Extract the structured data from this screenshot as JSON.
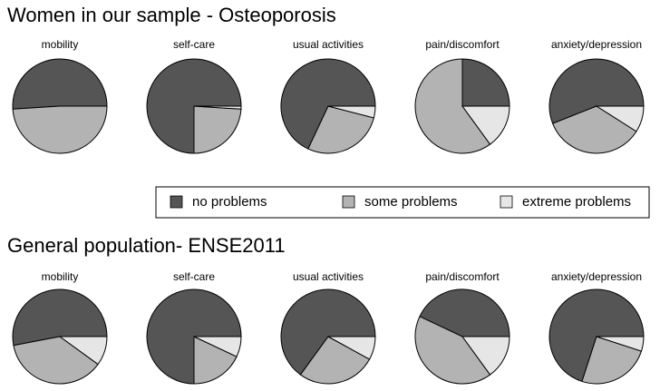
{
  "chart_data": [
    {
      "type": "pie",
      "title": "Women in our sample - Osteoporosis",
      "categories": [
        "mobility",
        "self-care",
        "usual activities",
        "pain/discomfort",
        "anxiety/depression"
      ],
      "series": [
        {
          "name": "no problems",
          "color": "#555555",
          "values": [
            51,
            75,
            68,
            25,
            56
          ]
        },
        {
          "name": "some problems",
          "color": "#b3b3b3",
          "values": [
            49,
            24,
            28,
            60,
            35
          ]
        },
        {
          "name": "extreme problems",
          "color": "#e6e6e6",
          "values": [
            0,
            1,
            4,
            15,
            9
          ]
        }
      ]
    },
    {
      "type": "pie",
      "title": "General population- ENSE2011",
      "categories": [
        "mobility",
        "self-care",
        "usual activities",
        "pain/discomfort",
        "anxiety/depression"
      ],
      "series": [
        {
          "color": "#555555",
          "values": [
            53,
            75,
            65,
            43,
            70
          ]
        },
        {
          "color": "#b3b3b3",
          "values": [
            37,
            18,
            27,
            42,
            25
          ]
        },
        {
          "color": "#e6e6e6",
          "values": [
            10,
            7,
            8,
            15,
            5
          ]
        }
      ]
    }
  ]
}
